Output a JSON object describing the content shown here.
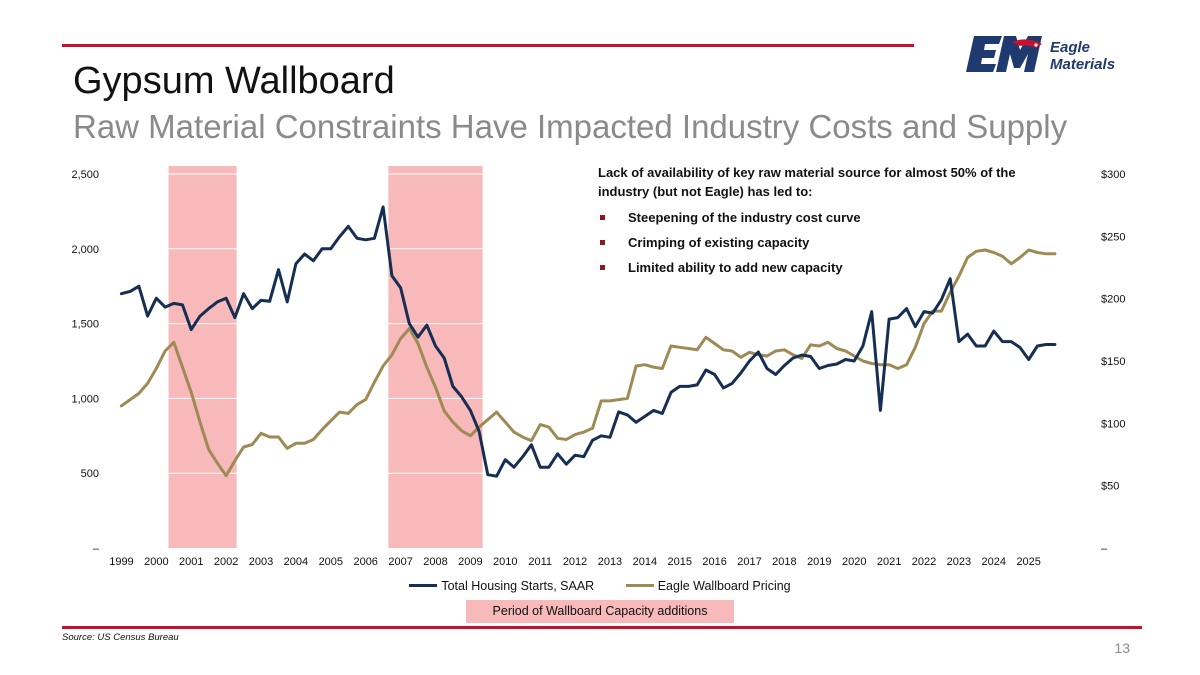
{
  "header": {
    "title": "Gypsum Wallboard",
    "subtitle": "Raw Material Constraints Have Impacted Industry Costs and Supply"
  },
  "logo": {
    "line1": "Eagle",
    "line2": "Materials",
    "mark": "EM",
    "navy": "#1f3a6e",
    "red": "#c8102e"
  },
  "annotation": {
    "heading": "Lack of availability of key raw material source for almost 50% of the industry (but not Eagle) has led to:",
    "bullets": [
      "Steepening of the industry cost curve",
      "Crimping of existing capacity",
      "Limited ability to add new capacity"
    ]
  },
  "period_label": "Period of Wallboard Capacity additions",
  "source": "Source: US Census Bureau",
  "page_number": "13",
  "colors": {
    "housing": "#152e52",
    "pricing": "#9e8a55",
    "shade": "#f7b9b9",
    "accent": "#c8102e"
  },
  "chart_data": {
    "type": "line",
    "title": "",
    "x_start": 1999,
    "x_step": 0.25,
    "x_ticks": [
      "1999",
      "2000",
      "2001",
      "2002",
      "2003",
      "2004",
      "2005",
      "2006",
      "2007",
      "2008",
      "2009",
      "2010",
      "2011",
      "2012",
      "2013",
      "2014",
      "2015",
      "2016",
      "2017",
      "2018",
      "2019",
      "2020",
      "2021",
      "2022",
      "2023",
      "2024",
      "2025"
    ],
    "y_left_ticks": [
      "–",
      "500",
      "1,000",
      "1,500",
      "2,000",
      "2,500"
    ],
    "y_left_range": [
      0,
      2500
    ],
    "y_right_ticks": [
      "–",
      "$50",
      "$100",
      "$150",
      "$200",
      "$250",
      "$300"
    ],
    "y_right_range": [
      0,
      300
    ],
    "shaded_periods": [
      [
        2000.35,
        2002.3
      ],
      [
        2006.65,
        2009.35
      ]
    ],
    "series": [
      {
        "name": "Total Housing Starts, SAAR",
        "axis": "left",
        "values": [
          1700,
          1715,
          1750,
          1550,
          1670,
          1610,
          1635,
          1625,
          1460,
          1550,
          1600,
          1645,
          1670,
          1540,
          1700,
          1600,
          1655,
          1650,
          1860,
          1645,
          1900,
          1965,
          1920,
          2000,
          2000,
          2080,
          2150,
          2070,
          2060,
          2070,
          2280,
          1820,
          1740,
          1500,
          1410,
          1490,
          1350,
          1270,
          1080,
          1010,
          920,
          780,
          490,
          480,
          590,
          540,
          610,
          690,
          540,
          540,
          630,
          560,
          620,
          610,
          720,
          750,
          740,
          910,
          890,
          840,
          880,
          920,
          900,
          1040,
          1080,
          1080,
          1090,
          1190,
          1160,
          1070,
          1100,
          1170,
          1250,
          1310,
          1200,
          1160,
          1220,
          1270,
          1290,
          1280,
          1200,
          1220,
          1230,
          1260,
          1250,
          1350,
          1580,
          920,
          1530,
          1540,
          1600,
          1480,
          1580,
          1570,
          1660,
          1800,
          1380,
          1430,
          1350,
          1350,
          1450,
          1380,
          1380,
          1340,
          1260,
          1350,
          1360,
          1360
        ]
      },
      {
        "name": "Eagle Wallboard Pricing",
        "axis": "right",
        "values": [
          114,
          119,
          124,
          132,
          144,
          158,
          165,
          145,
          125,
          101,
          79,
          68,
          58,
          70,
          81,
          83,
          92,
          89,
          89,
          80,
          84,
          84,
          87,
          95,
          102,
          109,
          108,
          115,
          119,
          133,
          146,
          155,
          168,
          176,
          164,
          145,
          129,
          110,
          101,
          94,
          90,
          97,
          103,
          109,
          101,
          93,
          89,
          86,
          99,
          97,
          88,
          87,
          91,
          93,
          96,
          118,
          118,
          119,
          120,
          146,
          147,
          145,
          144,
          162,
          161,
          160,
          159,
          169,
          164,
          159,
          158,
          153,
          157,
          155,
          154,
          158,
          159,
          155,
          152,
          163,
          162,
          165,
          160,
          158,
          154,
          150,
          148,
          147,
          147,
          144,
          147,
          161,
          180,
          190,
          190,
          205,
          218,
          233,
          238,
          239,
          237,
          234,
          228,
          233,
          239,
          237,
          236,
          236
        ]
      }
    ]
  }
}
